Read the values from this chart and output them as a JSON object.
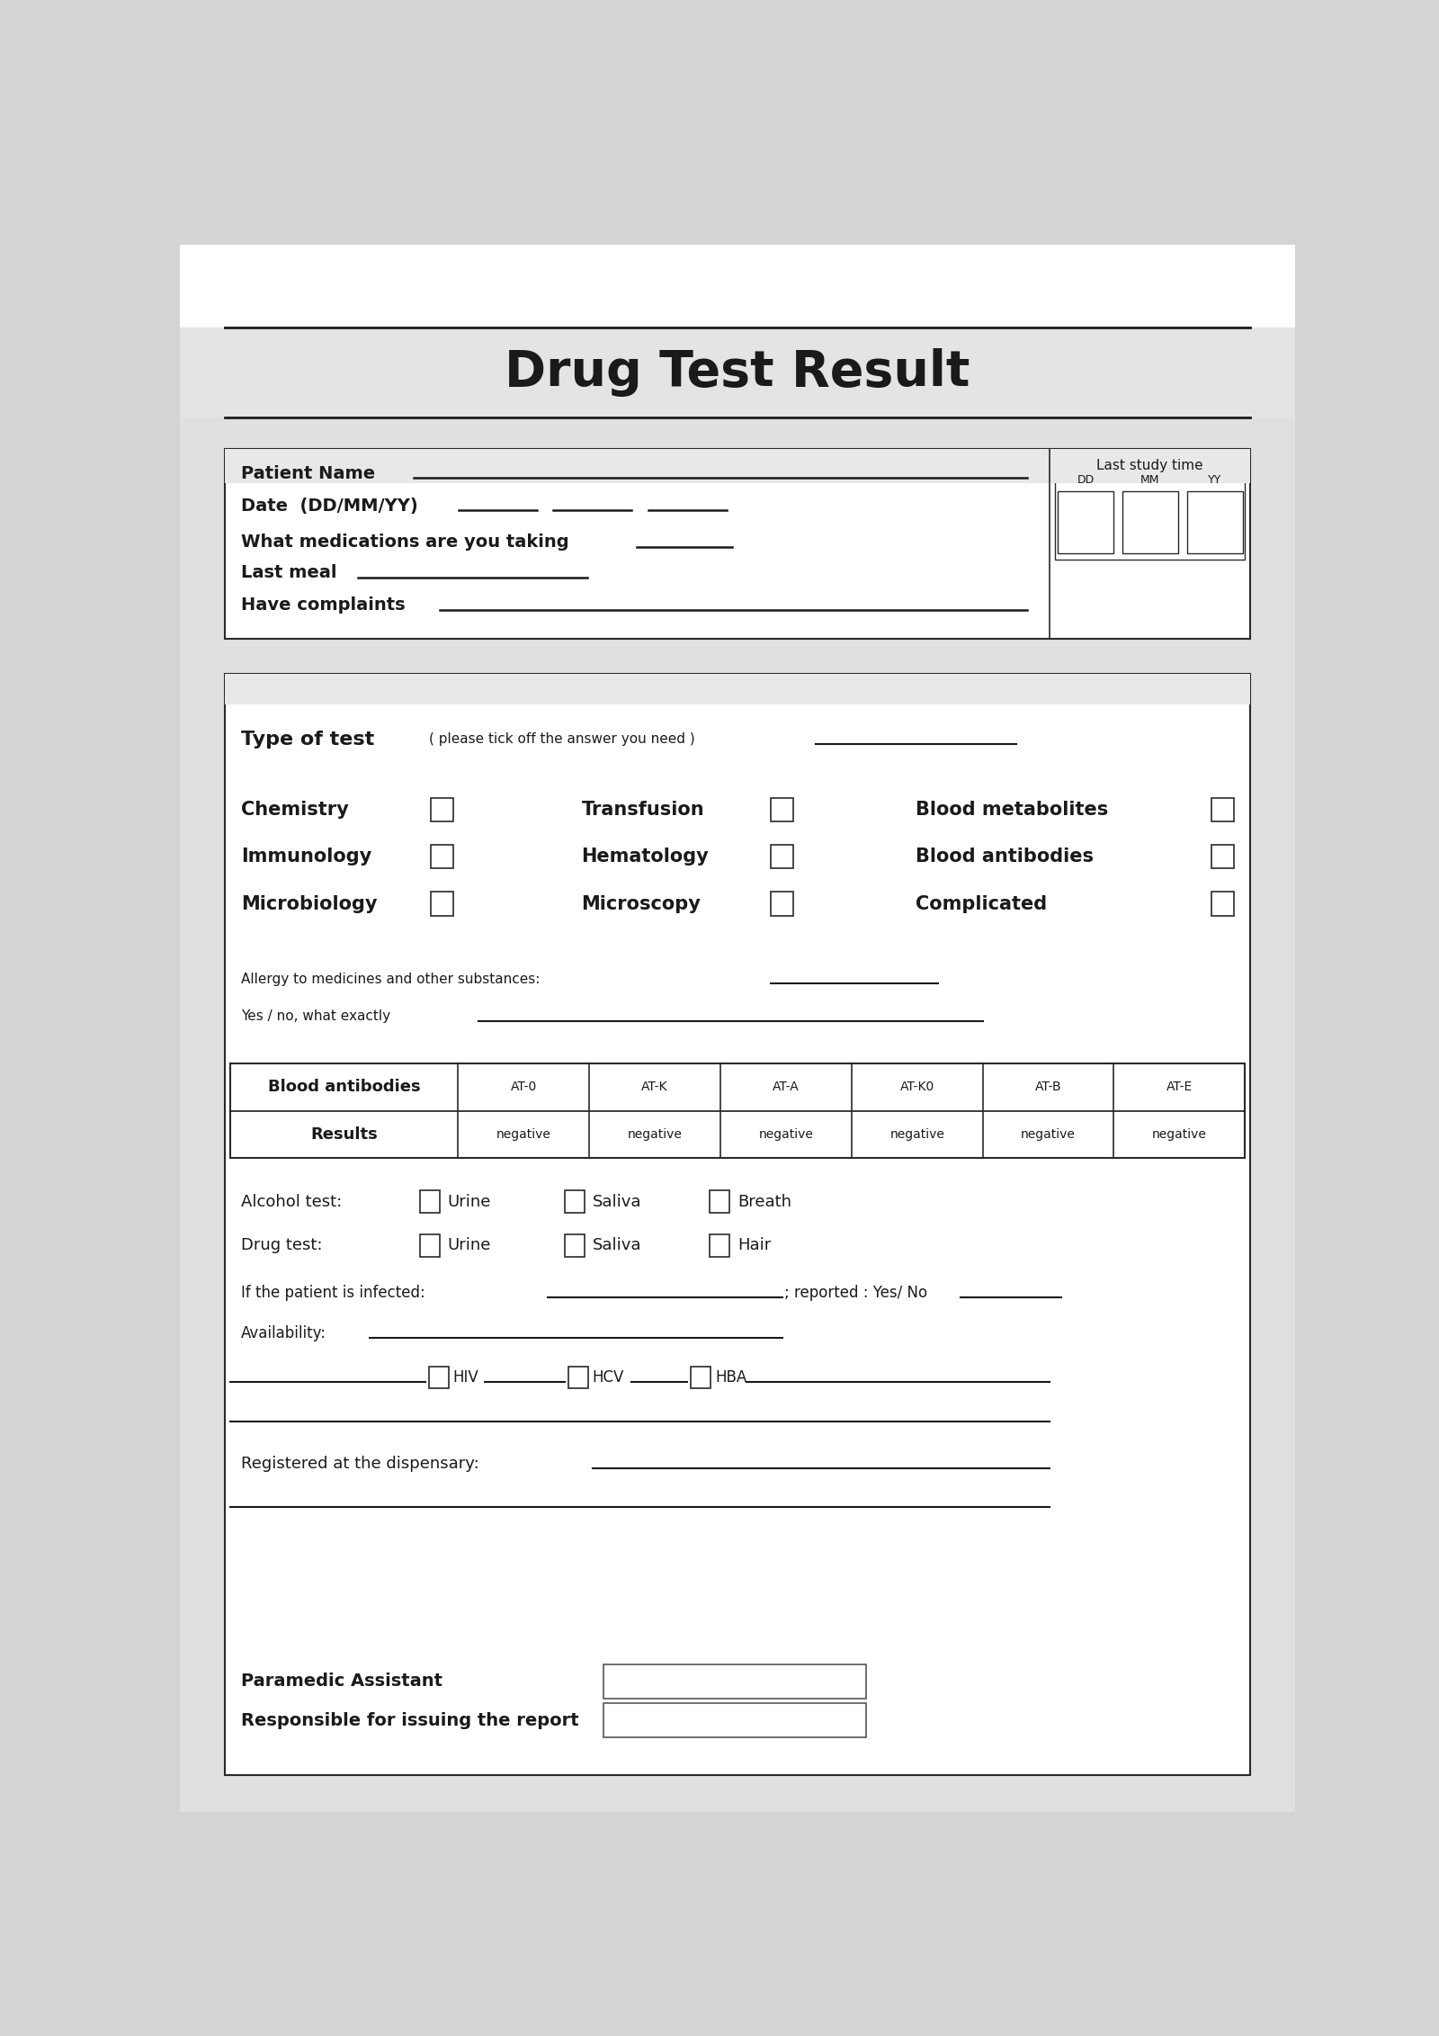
{
  "title": "Drug Test Result",
  "bg_top_color": "#ffffff",
  "bg_main_color": "#e8e8e8",
  "bg_bottom_color": "#d8d8d8",
  "header_band_color": "#e0e0e0",
  "form_bg": "#ffffff",
  "border_color": "#2a2a2a",
  "text_color": "#1a1a1a",
  "section1_fields": [
    "Patient Name",
    "Date  (DD/MM/YY)",
    "What medications are you taking",
    "Last meal",
    "Have complaints"
  ],
  "last_study_label": "Last study time",
  "date_box_labels": [
    "DD",
    "MM",
    "YY"
  ],
  "type_of_test_label": "Type of test",
  "type_of_test_sub": "( please tick off the answer you need )",
  "col1_labels": [
    "Chemistry",
    "Immunology",
    "Microbiology"
  ],
  "col2_labels": [
    "Transfusion",
    "Hematology",
    "Microscopy"
  ],
  "col3_labels": [
    "Blood metabolites",
    "Blood antibodies",
    "Complicated"
  ],
  "allergy_label": "Allergy to medicines and other substances:",
  "yes_no_label": "Yes / no, what exactly",
  "table_headers": [
    "Blood antibodies",
    "AT-0",
    "AT-K",
    "AT-A",
    "AT-K0",
    "AT-B",
    "AT-E"
  ],
  "table_row2": [
    "Results",
    "negative",
    "negative",
    "negative",
    "negative",
    "negative",
    "negative"
  ],
  "alcohol_label": "Alcohol test:",
  "alcohol_options": [
    "Urine",
    "Saliva",
    "Breath"
  ],
  "drug_label": "Drug test:",
  "drug_options": [
    "Urine",
    "Saliva",
    "Hair"
  ],
  "infected_label": "If the patient is infected:",
  "reported_label": "; reported : Yes/ No",
  "availability_label": "Availability:",
  "hiv_label": "HIV",
  "hcv_label": "HCV",
  "hba_label": "HBA",
  "dispensary_label": "Registered at the dispensary:",
  "paramedic_label": "Paramedic Assistant",
  "report_label": "Responsible for issuing the report"
}
